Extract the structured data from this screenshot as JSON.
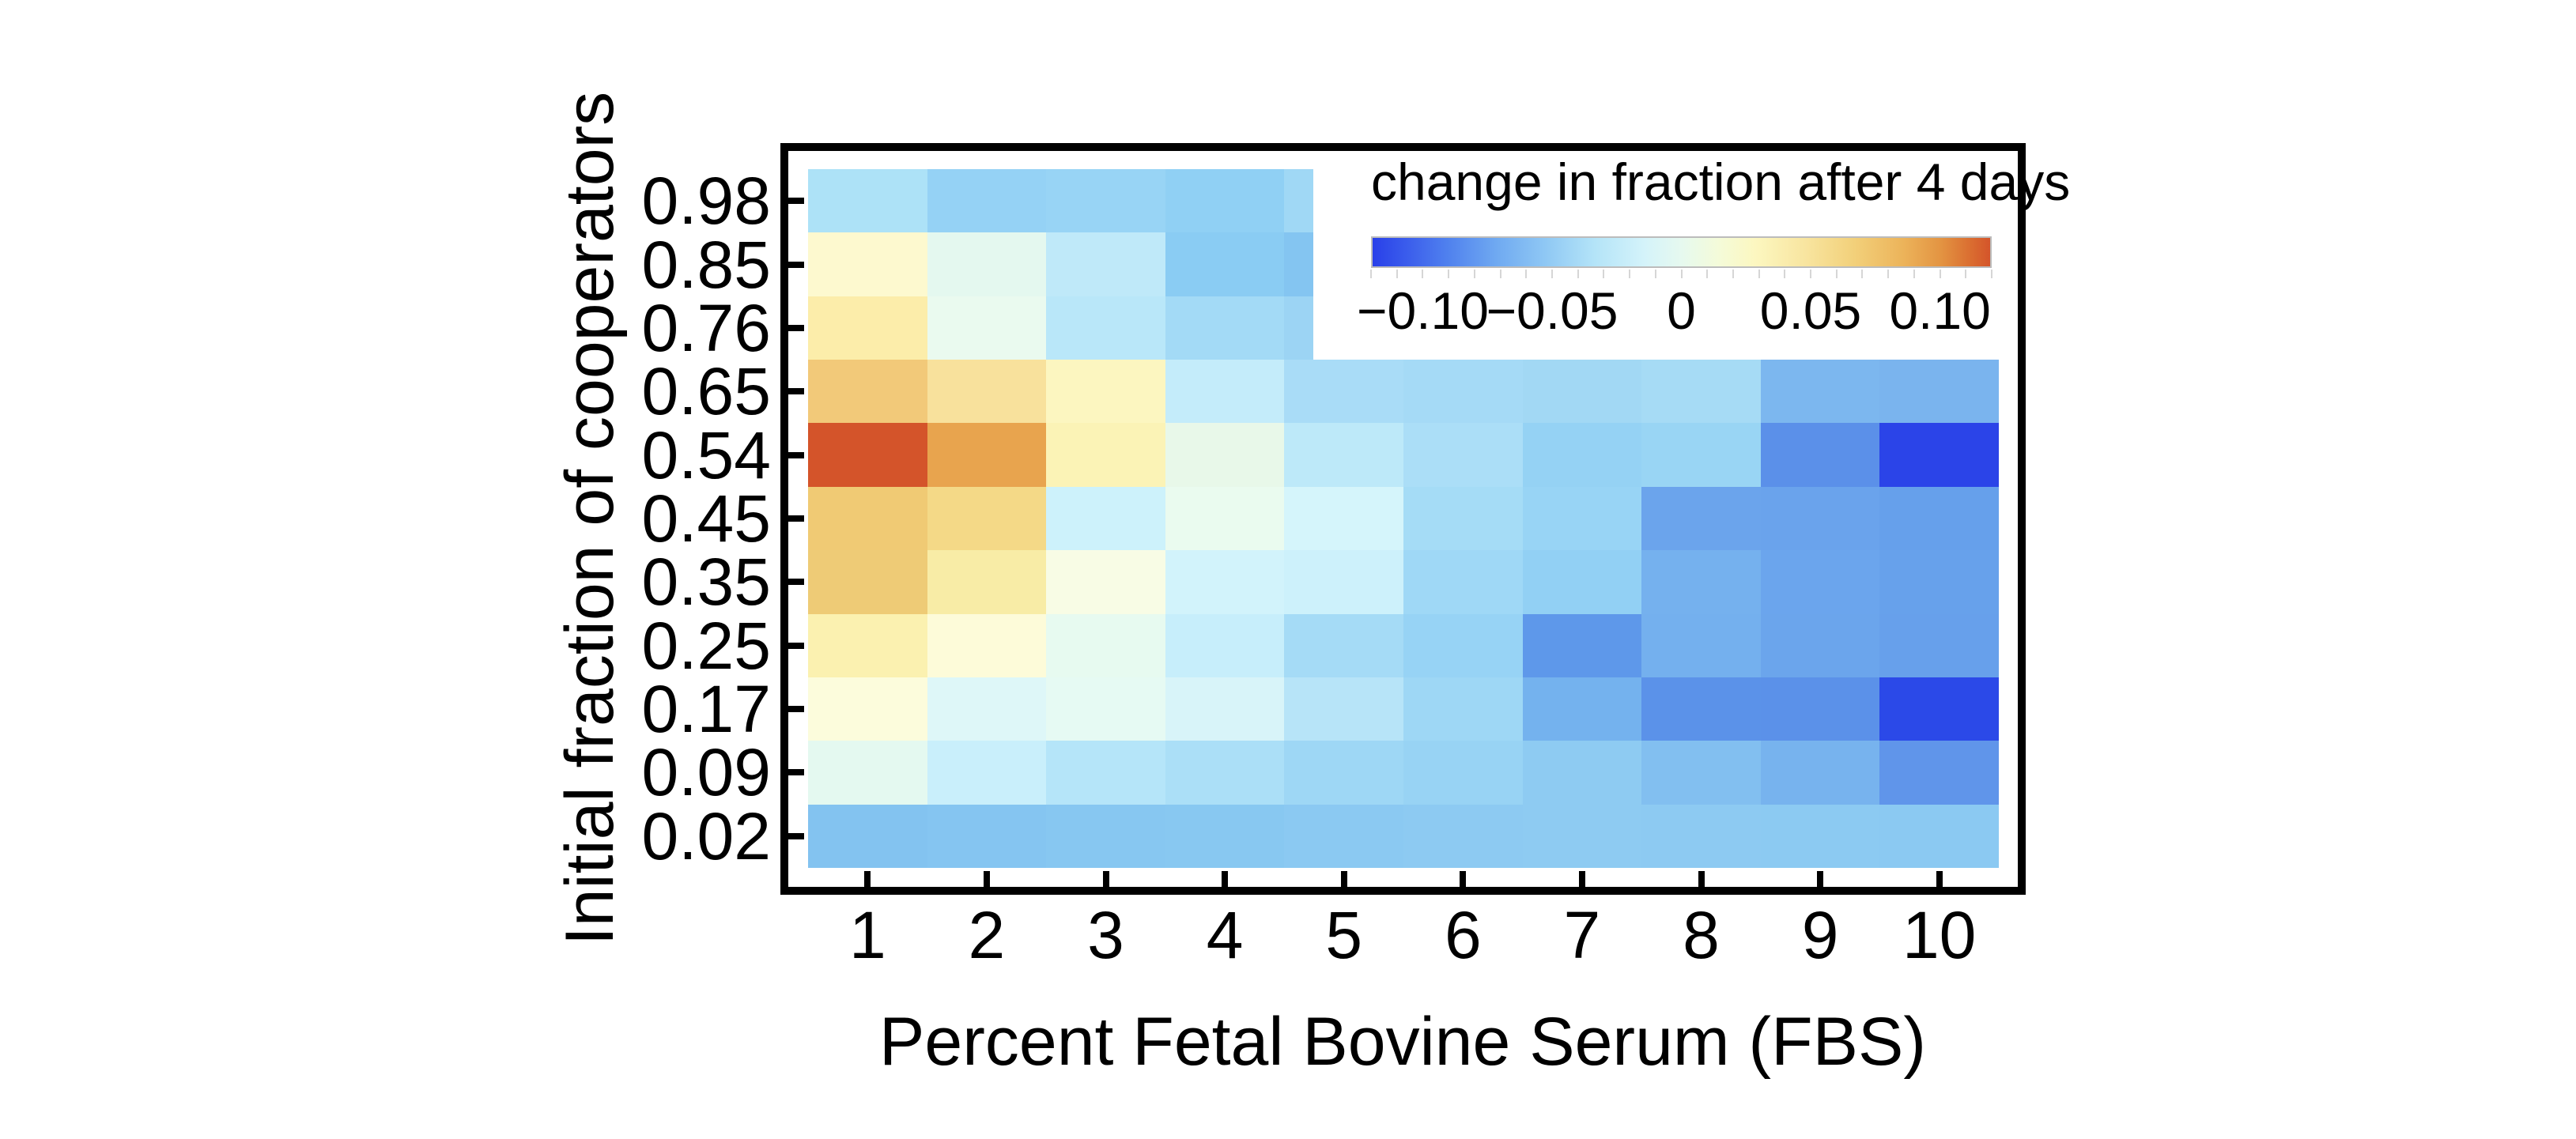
{
  "chart_data": {
    "type": "heatmap",
    "xlabel": "Percent Fetal Bovine Serum (FBS)",
    "ylabel": "Initial fraction of cooperators",
    "x_tick_labels": [
      "1",
      "2",
      "3",
      "4",
      "5",
      "6",
      "7",
      "8",
      "9",
      "10"
    ],
    "y_tick_labels_top_to_bottom": [
      "0.98",
      "0.85",
      "0.76",
      "0.65",
      "0.54",
      "0.45",
      "0.35",
      "0.25",
      "0.17",
      "0.09",
      "0.02"
    ],
    "grid": {
      "rows": 11,
      "cols": 10
    },
    "colorbar": {
      "title": "change in fraction after 4 days",
      "tick_labels": [
        "−0.10",
        "−0.05",
        "0",
        "0.05",
        "0.10"
      ],
      "tick_values": [
        -0.1,
        -0.05,
        0,
        0.05,
        0.1
      ],
      "value_range": [
        -0.12,
        0.12
      ],
      "minor_tick_count": 25,
      "gradient_stops": [
        {
          "pos": 0,
          "color": "#2940e9"
        },
        {
          "pos": 6,
          "color": "#3c5fec"
        },
        {
          "pos": 12,
          "color": "#4f80ee"
        },
        {
          "pos": 20,
          "color": "#6fa9f1"
        },
        {
          "pos": 28,
          "color": "#8fc8f4"
        },
        {
          "pos": 36,
          "color": "#b4e4f8"
        },
        {
          "pos": 44,
          "color": "#d4f3fa"
        },
        {
          "pos": 50,
          "color": "#e6f9ef"
        },
        {
          "pos": 56,
          "color": "#f4fbd9"
        },
        {
          "pos": 62,
          "color": "#fcf7c0"
        },
        {
          "pos": 70,
          "color": "#f8e5a0"
        },
        {
          "pos": 78,
          "color": "#f2d07a"
        },
        {
          "pos": 86,
          "color": "#ecb35a"
        },
        {
          "pos": 92,
          "color": "#e39442"
        },
        {
          "pos": 97,
          "color": "#da6c30"
        },
        {
          "pos": 100,
          "color": "#d4542a"
        }
      ]
    },
    "hidden_note": "null cells are covered by the white legend box (rows 0.98-0.76, columns 6-10)",
    "cell_colors": [
      [
        "#ade2f7",
        "#95d2f5",
        "#98d4f5",
        "#90d0f4",
        "#a0d8f5",
        null,
        null,
        null,
        null,
        null
      ],
      [
        "#fdf9cf",
        "#e4f8ef",
        "#bfe9f9",
        "#8accf3",
        "#84c5f1",
        null,
        null,
        null,
        null,
        null
      ],
      [
        "#fcedaa",
        "#eafaef",
        "#b9e7f9",
        "#a3daf6",
        "#9cd4f4",
        null,
        null,
        null,
        null,
        null
      ],
      [
        "#f2c979",
        "#f8e19c",
        "#fcf6c0",
        "#c4ecfa",
        "#a9dcf7",
        "#a5daf6",
        "#a2d8f4",
        "#a6dbf5",
        "#7cb7ef",
        "#7ab4ee"
      ],
      [
        "#d4542a",
        "#e8a44e",
        "#fbf3b6",
        "#e8f8e9",
        "#bde9f9",
        "#abdef7",
        "#95d2f4",
        "#99d5f4",
        "#5b90e9",
        "#2b44e8"
      ],
      [
        "#f0ca74",
        "#f4d987",
        "#cdf2fb",
        "#eafbef",
        "#d5f5fb",
        "#a5dcf6",
        "#98d4f5",
        "#6ba4ec",
        "#6aa3ec",
        "#66a0eb"
      ],
      [
        "#eecb76",
        "#f8eca6",
        "#f8fce5",
        "#d2f3fb",
        "#cdf1fb",
        "#9fd8f6",
        "#92d0f4",
        "#75b1ee",
        "#6ba5ed",
        "#67a1eb"
      ],
      [
        "#fbf1b0",
        "#fdfbd9",
        "#e7faf0",
        "#c7eefb",
        "#a5dbf6",
        "#97d3f5",
        "#5e98ea",
        "#74b0ee",
        "#6ba5ec",
        "#67a0eb"
      ],
      [
        "#fcfcdc",
        "#def7f8",
        "#e6faf3",
        "#d8f4f9",
        "#b7e4f8",
        "#9ed7f5",
        "#74b2ee",
        "#5b92e9",
        "#5b91e9",
        "#2b49e8"
      ],
      [
        "#e4f9f0",
        "#c9effb",
        "#b5e5f9",
        "#abdff7",
        "#9ed7f5",
        "#98d3f4",
        "#8ecbf2",
        "#82bff0",
        "#77b3ee",
        "#6095ea"
      ],
      [
        "#83c3f0",
        "#85c5f1",
        "#87c7f1",
        "#88c8f1",
        "#8bc9f2",
        "#8dcaf2",
        "#8ecbf2",
        "#8dcaf2",
        "#8ccaf2",
        "#8bc9f2"
      ]
    ],
    "cell_values_estimated": [
      [
        -0.026,
        -0.036,
        -0.035,
        -0.038,
        -0.031,
        null,
        null,
        null,
        null,
        null
      ],
      [
        0.018,
        0.0,
        -0.018,
        -0.041,
        -0.044,
        null,
        null,
        null,
        null,
        null
      ],
      [
        0.03,
        0.002,
        -0.02,
        -0.03,
        -0.034,
        null,
        null,
        null,
        null,
        null
      ],
      [
        0.063,
        0.042,
        0.023,
        -0.015,
        -0.028,
        -0.029,
        -0.03,
        -0.028,
        -0.052,
        -0.053
      ],
      [
        0.115,
        0.085,
        0.026,
        0.004,
        -0.018,
        -0.026,
        -0.036,
        -0.034,
        -0.072,
        -0.11
      ],
      [
        0.064,
        0.053,
        -0.01,
        0.003,
        -0.007,
        -0.029,
        -0.035,
        -0.061,
        -0.062,
        -0.064
      ],
      [
        0.063,
        0.033,
        0.009,
        -0.008,
        -0.01,
        -0.032,
        -0.037,
        -0.056,
        -0.061,
        -0.064
      ],
      [
        0.028,
        0.014,
        0.002,
        -0.013,
        -0.029,
        -0.035,
        -0.067,
        -0.056,
        -0.061,
        -0.064
      ],
      [
        0.013,
        -0.004,
        0.0,
        -0.006,
        -0.022,
        -0.032,
        -0.056,
        -0.071,
        -0.071,
        -0.107
      ],
      [
        0.001,
        -0.012,
        -0.023,
        -0.027,
        -0.032,
        -0.034,
        -0.04,
        -0.047,
        -0.054,
        -0.069
      ],
      [
        -0.044,
        -0.044,
        -0.043,
        -0.042,
        -0.041,
        -0.04,
        -0.04,
        -0.04,
        -0.04,
        -0.041
      ]
    ]
  }
}
